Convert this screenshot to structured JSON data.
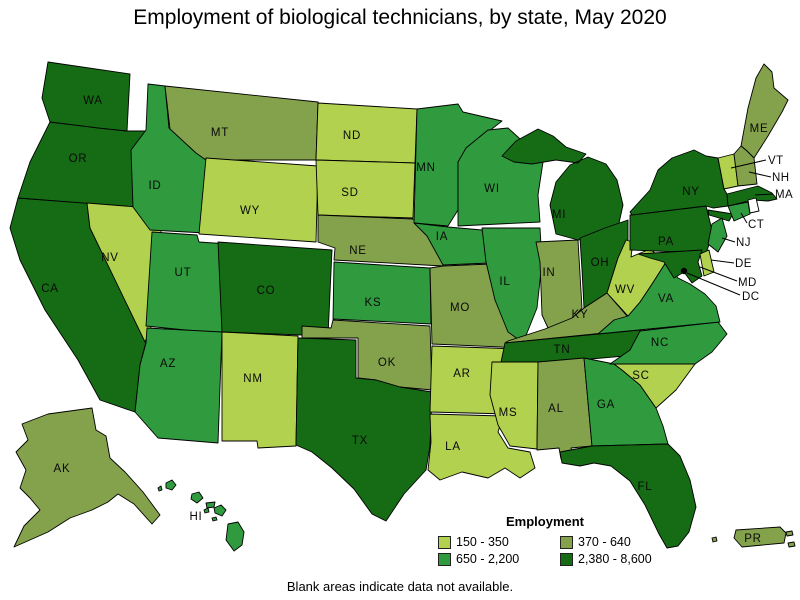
{
  "title": "Employment of biological technicians, by state, May 2020",
  "footer": "Blank areas indicate data not available.",
  "legend": {
    "title": "Employment",
    "items": [
      {
        "label": "150 - 350",
        "color": "#b2d14e"
      },
      {
        "label": "370 - 640",
        "color": "#84a14c"
      },
      {
        "label": "650 - 2,200",
        "color": "#2f9a3e"
      },
      {
        "label": "2,380 - 8,600",
        "color": "#156c15"
      }
    ]
  },
  "map": {
    "border_color": "#000000",
    "no_data_color": "#ffffff",
    "dc_dot_color": "#000000",
    "states": [
      {
        "id": "CA",
        "label": "CA",
        "category": 3
      },
      {
        "id": "OR",
        "label": "OR",
        "category": 3
      },
      {
        "id": "WA",
        "label": "WA",
        "category": 3
      },
      {
        "id": "NV",
        "label": "NV",
        "category": 0
      },
      {
        "id": "ID",
        "label": "ID",
        "category": 2
      },
      {
        "id": "MT",
        "label": "MT",
        "category": 1
      },
      {
        "id": "WY",
        "label": "WY",
        "category": 0
      },
      {
        "id": "UT",
        "label": "UT",
        "category": 2
      },
      {
        "id": "CO",
        "label": "CO",
        "category": 3
      },
      {
        "id": "AZ",
        "label": "AZ",
        "category": 2
      },
      {
        "id": "NM",
        "label": "NM",
        "category": 0
      },
      {
        "id": "ND",
        "label": "ND",
        "category": 0
      },
      {
        "id": "SD",
        "label": "SD",
        "category": 0
      },
      {
        "id": "NE",
        "label": "NE",
        "category": 1
      },
      {
        "id": "KS",
        "label": "KS",
        "category": 2
      },
      {
        "id": "OK",
        "label": "OK",
        "category": 1
      },
      {
        "id": "TX",
        "label": "TX",
        "category": 3
      },
      {
        "id": "MN",
        "label": "MN",
        "category": 2
      },
      {
        "id": "IA",
        "label": "IA",
        "category": 2
      },
      {
        "id": "MO",
        "label": "MO",
        "category": 1
      },
      {
        "id": "AR",
        "label": "AR",
        "category": 0
      },
      {
        "id": "LA",
        "label": "LA",
        "category": 0
      },
      {
        "id": "WI",
        "label": "WI",
        "category": 2
      },
      {
        "id": "IL",
        "label": "IL",
        "category": 2
      },
      {
        "id": "MI",
        "label": "MI",
        "category": 3
      },
      {
        "id": "IN",
        "label": "IN",
        "category": 1
      },
      {
        "id": "OH",
        "label": "OH",
        "category": 3
      },
      {
        "id": "KY",
        "label": "KY",
        "category": 1
      },
      {
        "id": "TN",
        "label": "TN",
        "category": 3
      },
      {
        "id": "MS",
        "label": "MS",
        "category": 0
      },
      {
        "id": "AL",
        "label": "AL",
        "category": 1
      },
      {
        "id": "GA",
        "label": "GA",
        "category": 2
      },
      {
        "id": "FL",
        "label": "FL",
        "category": 3
      },
      {
        "id": "SC",
        "label": "SC",
        "category": 0
      },
      {
        "id": "NC",
        "label": "NC",
        "category": 2
      },
      {
        "id": "VA",
        "label": "VA",
        "category": 2
      },
      {
        "id": "WV",
        "label": "WV",
        "category": 0
      },
      {
        "id": "PA",
        "label": "PA",
        "category": 3
      },
      {
        "id": "NY",
        "label": "NY",
        "category": 3
      },
      {
        "id": "ME",
        "label": "ME",
        "category": 1
      },
      {
        "id": "VT",
        "label": "VT",
        "category": 0
      },
      {
        "id": "NH",
        "label": "NH",
        "category": 1
      },
      {
        "id": "MA",
        "label": "MA",
        "category": 3
      },
      {
        "id": "RI",
        "label": "",
        "no_data": true
      },
      {
        "id": "CT",
        "label": "CT",
        "category": 2
      },
      {
        "id": "NJ",
        "label": "NJ",
        "category": 2
      },
      {
        "id": "MD",
        "label": "MD",
        "category": 3
      },
      {
        "id": "DE",
        "label": "DE",
        "category": 0
      },
      {
        "id": "DC",
        "label": "DC",
        "dot": true
      },
      {
        "id": "AK",
        "label": "AK",
        "category": 1
      },
      {
        "id": "HI",
        "label": "HI",
        "category": 2
      },
      {
        "id": "PR",
        "label": "PR",
        "category": 1
      }
    ]
  }
}
